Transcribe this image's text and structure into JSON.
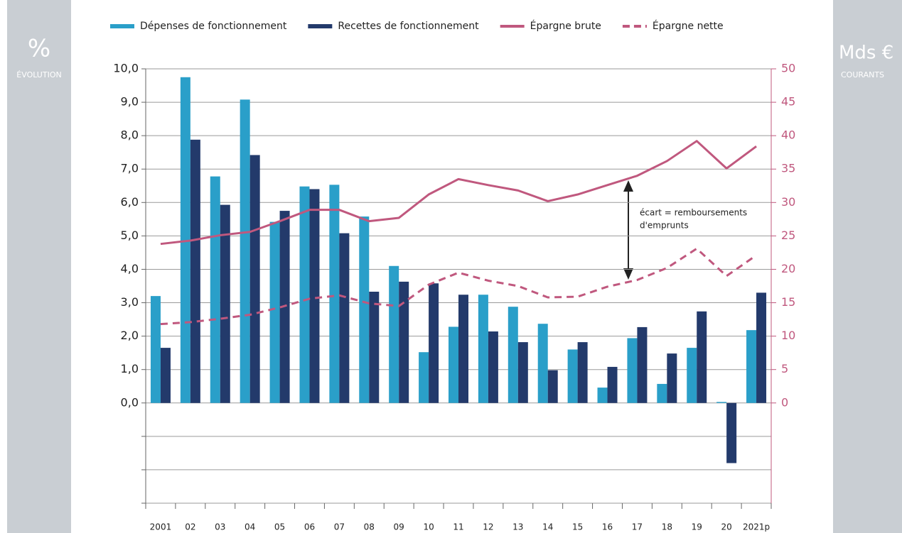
{
  "chart_data": {
    "type": "bar-line",
    "left_panel": {
      "symbol": "%",
      "label": "ÉVOLUTION"
    },
    "right_panel": {
      "symbol": "Mds €",
      "label": "COURANTS"
    },
    "categories": [
      "2001",
      "02",
      "03",
      "04",
      "05",
      "06",
      "07",
      "08",
      "09",
      "10",
      "11",
      "12",
      "13",
      "14",
      "15",
      "16",
      "17",
      "18",
      "19",
      "20",
      "2021p"
    ],
    "series": [
      {
        "name": "Dépenses de fonctionnement",
        "type": "bar",
        "color": "#2a9fc9",
        "values": [
          3.2,
          9.75,
          6.78,
          9.08,
          5.42,
          6.48,
          6.53,
          5.58,
          4.1,
          1.52,
          2.28,
          3.24,
          2.88,
          2.37,
          1.6,
          0.46,
          1.94,
          0.57,
          1.65,
          0.03,
          2.18
        ]
      },
      {
        "name": "Recettes de fonctionnement",
        "type": "bar",
        "color": "#233a6b",
        "values": [
          1.65,
          7.88,
          5.93,
          7.42,
          5.75,
          6.4,
          5.08,
          3.33,
          3.63,
          3.58,
          3.24,
          2.14,
          1.82,
          0.98,
          1.82,
          1.08,
          2.27,
          1.48,
          2.74,
          -1.8,
          3.3
        ]
      },
      {
        "name": "Épargne brute",
        "type": "line",
        "axis": "y2",
        "color": "#c0587e",
        "values": [
          23.8,
          24.3,
          25.1,
          25.6,
          27.2,
          28.9,
          28.9,
          27.2,
          27.7,
          31.2,
          33.5,
          32.6,
          31.8,
          30.2,
          31.2,
          32.6,
          34.0,
          36.2,
          39.2,
          35.1,
          38.4
        ]
      },
      {
        "name": "Épargne nette",
        "type": "line",
        "dashed": true,
        "axis": "y2",
        "color": "#c0587e",
        "values": [
          11.8,
          12.1,
          12.6,
          13.2,
          14.3,
          15.6,
          16.1,
          14.9,
          14.5,
          17.7,
          19.5,
          18.3,
          17.5,
          15.8,
          15.9,
          17.4,
          18.4,
          20.2,
          23.1,
          19.0,
          22.1
        ]
      }
    ],
    "ylim": [
      -3,
      10
    ],
    "yticks": [
      {
        "value": -3,
        "label": null
      },
      {
        "value": -2,
        "label": null
      },
      {
        "value": -1,
        "label": null
      },
      {
        "value": 0,
        "label": "0,0"
      },
      {
        "value": 1,
        "label": "1,0"
      },
      {
        "value": 2,
        "label": "2,0"
      },
      {
        "value": 3,
        "label": "3,0"
      },
      {
        "value": 4,
        "label": "4,0"
      },
      {
        "value": 5,
        "label": "5,0"
      },
      {
        "value": 6,
        "label": "6,0"
      },
      {
        "value": 7,
        "label": "7,0"
      },
      {
        "value": 8,
        "label": "8,0"
      },
      {
        "value": 9,
        "label": "9,0"
      },
      {
        "value": 10,
        "label": "10,0"
      }
    ],
    "y2lim": [
      -15,
      50
    ],
    "y2ticks": [
      0,
      5,
      10,
      15,
      20,
      25,
      30,
      35,
      40,
      45,
      50
    ],
    "y2color": "#c0587e",
    "grid": true,
    "annotation": [
      "écart = remboursements",
      "d'emprunts"
    ],
    "legend": "top"
  }
}
